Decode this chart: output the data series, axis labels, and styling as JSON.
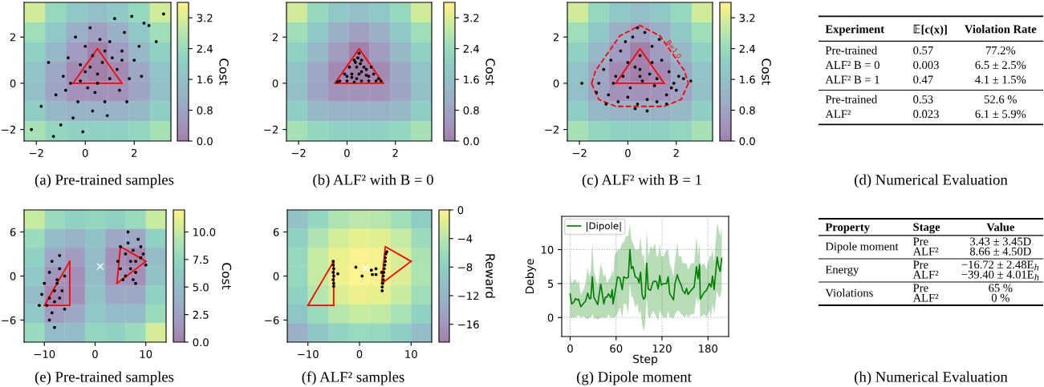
{
  "chart_data": [
    {
      "type": "heatmap",
      "title": "(a) Pre-trained samples",
      "xlim": [
        -2.5,
        3.5
      ],
      "ylim": [
        -2.5,
        3.5
      ],
      "xticks": [
        -2,
        0,
        2
      ],
      "yticks": [
        -2,
        0,
        2
      ],
      "clabel": "Cost",
      "clim": [
        0,
        3.6
      ],
      "cticks": [
        {
          "value": 0,
          "label": "0.0"
        },
        0.8,
        1.6,
        2.4,
        3.2
      ],
      "cells": [
        [
          3.1,
          2.3,
          1.8,
          1.6,
          1.8,
          2.3,
          3.1
        ],
        [
          2.5,
          1.8,
          1.1,
          0.7,
          1.1,
          1.8,
          2.5
        ],
        [
          2.1,
          1.4,
          0.6,
          0,
          0.6,
          1.4,
          2.1
        ],
        [
          1.7,
          0.9,
          0.2,
          0,
          0.2,
          0.9,
          1.7
        ],
        [
          1.6,
          0.8,
          0.4,
          0.4,
          0.4,
          0.8,
          1.6
        ],
        [
          2.0,
          1.4,
          1.2,
          1.2,
          1.2,
          1.4,
          2.0
        ],
        [
          2.6,
          2.2,
          2.1,
          2.1,
          2.1,
          2.2,
          2.6
        ]
      ],
      "series": [
        {
          "type": "scatter",
          "color": "#000000",
          "marker": "circle",
          "x": [
            -1.8,
            -1.2,
            -0.9,
            -0.5,
            -0.2,
            0.1,
            0.3,
            0.5,
            0.8,
            1.0,
            1.3,
            1.6,
            2.0,
            2.4,
            2.9,
            3.2,
            -2.2,
            -1.5,
            -1.0,
            -0.6,
            -0.3,
            0.0,
            0.2,
            0.4,
            0.7,
            0.9,
            1.2,
            1.5,
            1.8,
            2.2,
            2.6,
            -1.3,
            -0.8,
            -0.4,
            0.0,
            0.3,
            0.6,
            1.0,
            1.4,
            1.9,
            -0.7,
            -0.1,
            0.5,
            1.1,
            1.7,
            2.3,
            0.2,
            0.8,
            -0.2,
            1.5
          ],
          "values": [
            -1.0,
            -0.5,
            0.3,
            -1.5,
            0.8,
            -0.2,
            1.2,
            0.4,
            -0.8,
            1.8,
            0.6,
            2.2,
            1.0,
            2.6,
            1.8,
            3.0,
            -2.0,
            0.9,
            -1.8,
            0.0,
            -0.8,
            1.6,
            2.4,
            -0.4,
            0.9,
            -1.4,
            2.8,
            1.4,
            0.2,
            1.6,
            2.5,
            -2.3,
            -0.3,
            2.0,
            0.5,
            -1.2,
            1.9,
            0.2,
            -0.3,
            2.9,
            1.1,
            -2.1,
            0.0,
            1.1,
            -0.8,
            0.3,
            0.7,
            1.4,
            0.1,
            1.0
          ]
        },
        {
          "type": "line",
          "color": "#ff0000",
          "x": [
            -0.5,
            0.5,
            1.5
          ],
          "values": [
            0,
            1.5,
            0
          ]
        },
        {
          "type": "line",
          "color": "#ff0000",
          "x": [
            -0.5,
            1.5
          ],
          "values": [
            0,
            0
          ]
        }
      ]
    },
    {
      "type": "heatmap",
      "title": "(b) ALF² with B = 0",
      "xlim": [
        -2.5,
        3.5
      ],
      "ylim": [
        -2.5,
        3.5
      ],
      "xticks": [
        -2,
        0,
        2
      ],
      "yticks": [
        -2,
        0,
        2
      ],
      "clabel": "Cost",
      "clim": [
        0,
        3.6
      ],
      "cticks": [
        {
          "value": 0,
          "label": "0.0"
        },
        0.8,
        1.6,
        2.4,
        3.2
      ],
      "cells": [
        [
          3.1,
          2.3,
          1.8,
          1.6,
          1.8,
          2.3,
          3.1
        ],
        [
          2.5,
          1.8,
          1.1,
          0.7,
          1.1,
          1.8,
          2.5
        ],
        [
          2.1,
          1.4,
          0.6,
          0,
          0.6,
          1.4,
          2.1
        ],
        [
          1.7,
          0.9,
          0.2,
          0,
          0.2,
          0.9,
          1.7
        ],
        [
          1.6,
          0.8,
          0.4,
          0.4,
          0.4,
          0.8,
          1.6
        ],
        [
          2.0,
          1.4,
          1.2,
          1.2,
          1.2,
          1.4,
          2.0
        ],
        [
          2.6,
          2.2,
          2.1,
          2.1,
          2.1,
          2.2,
          2.6
        ]
      ],
      "series": [
        {
          "type": "scatter",
          "color": "#000000",
          "marker": "circle",
          "x": [
            -0.3,
            0.0,
            0.3,
            0.6,
            0.9,
            1.2,
            1.4,
            -0.1,
            0.2,
            0.5,
            0.8,
            1.1,
            0.1,
            0.4,
            0.7,
            1.0,
            0.3,
            0.6,
            0.5,
            0.4,
            0.2,
            0.8,
            -0.4,
            1.3,
            0.6,
            0.0,
            0.9,
            0.45,
            0.55,
            0.35
          ],
          "values": [
            0.1,
            0.1,
            0.05,
            0.1,
            0.1,
            0.1,
            0.1,
            0.4,
            0.4,
            0.4,
            0.35,
            0.4,
            0.7,
            0.7,
            0.7,
            0.7,
            1.0,
            1.0,
            1.3,
            0.2,
            0.25,
            0.6,
            0.05,
            0.2,
            0.5,
            0.3,
            0.3,
            1.1,
            0.85,
            0.9
          ]
        },
        {
          "type": "line",
          "color": "#ff0000",
          "x": [
            -0.5,
            0.5,
            1.5
          ],
          "values": [
            0,
            1.5,
            0
          ]
        },
        {
          "type": "line",
          "color": "#ff0000",
          "x": [
            -0.5,
            1.5
          ],
          "values": [
            0,
            0
          ]
        }
      ]
    },
    {
      "type": "heatmap",
      "title": "(c) ALF² with B = 1",
      "xlim": [
        -2.5,
        3.5
      ],
      "ylim": [
        -2.5,
        3.5
      ],
      "xticks": [
        -2,
        0,
        2
      ],
      "yticks": [
        -2,
        0,
        2
      ],
      "clabel": "Cost",
      "clim": [
        0,
        3.6
      ],
      "cticks": [
        {
          "value": 0,
          "label": "0.0"
        },
        0.8,
        1.6,
        2.4,
        3.2
      ],
      "cells": [
        [
          3.1,
          2.3,
          1.8,
          1.6,
          1.8,
          2.3,
          3.1
        ],
        [
          2.5,
          1.8,
          1.1,
          0.7,
          1.1,
          1.8,
          2.5
        ],
        [
          2.1,
          1.4,
          0.6,
          0,
          0.6,
          1.4,
          2.1
        ],
        [
          1.7,
          0.9,
          0.2,
          0,
          0.2,
          0.9,
          1.7
        ],
        [
          1.6,
          0.8,
          0.4,
          0.4,
          0.4,
          0.8,
          1.6
        ],
        [
          2.0,
          1.4,
          1.2,
          1.2,
          1.2,
          1.4,
          2.0
        ],
        [
          2.6,
          2.2,
          2.1,
          2.1,
          2.1,
          2.2,
          2.6
        ]
      ],
      "annotations": [
        "B=1.0"
      ],
      "series": [
        {
          "type": "scatter",
          "color": "#000000",
          "marker": "circle",
          "x": [
            -1.2,
            -0.8,
            -0.4,
            0.0,
            0.4,
            0.8,
            1.2,
            1.6,
            2.0,
            2.3,
            -1.0,
            -0.5,
            0.1,
            0.6,
            1.1,
            1.7,
            2.1,
            -1.3,
            -0.7,
            0.3,
            0.9,
            1.4,
            1.9,
            -0.3,
            0.5,
            1.0,
            0.2,
            0.7,
            -0.1,
            1.3,
            0.5,
            0.0,
            1.0,
            -0.6,
            1.6,
            0.4,
            -1.9,
            2.6,
            0.3,
            0.8,
            -0.2,
            1.2,
            -0.9,
            1.8,
            0.5
          ],
          "values": [
            0.0,
            -0.5,
            -0.8,
            -0.6,
            -0.9,
            -0.7,
            -0.8,
            -0.5,
            -0.3,
            0.2,
            0.6,
            0.3,
            -0.2,
            0.1,
            -0.1,
            0.5,
            0.3,
            -0.4,
            1.0,
            0.7,
            0.4,
            1.0,
            0.0,
            1.4,
            1.2,
            1.6,
            2.0,
            2.2,
            1.8,
            1.9,
            0.6,
            0.9,
            0.9,
            0.0,
            -0.9,
            2.4,
            0.0,
            0.1,
            -1.1,
            -1.2,
            0.3,
            0.2,
            -0.9,
            -0.2,
            0.3
          ]
        },
        {
          "type": "line",
          "color": "#ff0000",
          "x": [
            -0.5,
            0.5,
            1.5
          ],
          "values": [
            0,
            1.5,
            0
          ]
        },
        {
          "type": "line",
          "color": "#ff0000",
          "x": [
            -0.5,
            1.5
          ],
          "values": [
            0,
            0
          ]
        },
        {
          "type": "line",
          "color": "#ff0000",
          "line_style": "dashed",
          "x": [
            -1.5,
            -1.33,
            -0.33,
            0.5,
            1.33,
            2.33,
            2.5
          ],
          "values": [
            0.0,
            0.55,
            2.05,
            2.5,
            2.05,
            0.55,
            0.0
          ]
        },
        {
          "type": "line",
          "color": "#ff0000",
          "line_style": "dashed",
          "x": [
            -1.5,
            -1.2,
            -0.5,
            1.5,
            2.2,
            2.5
          ],
          "values": [
            0.0,
            -0.7,
            -1.0,
            -1.0,
            -0.7,
            0.0
          ]
        }
      ]
    },
    {
      "type": "other",
      "title": "(d) Numerical Evaluation",
      "categories": [
        "Experiment",
        "𝔼[c(x)]",
        "Violation Rate"
      ],
      "cell_labels": [
        [
          [
            "Pre-trained",
            "0.57",
            "77.2%"
          ],
          [
            "ALF² B = 0",
            "0.003",
            "6.5 ± 2.5%"
          ],
          [
            "ALF² B = 1",
            "0.47",
            "4.1 ± 1.5%"
          ]
        ],
        [
          [
            "Pre-trained",
            "0.53",
            "52.6 %"
          ],
          [
            "ALF²",
            "0.023",
            "6.1 ± 5.9%"
          ]
        ]
      ]
    },
    {
      "type": "heatmap",
      "title": "(e) Pre-trained samples",
      "xlim": [
        -14,
        14
      ],
      "ylim": [
        -9,
        9
      ],
      "xticks": [
        -10,
        0,
        10
      ],
      "yticks": [
        -6,
        0,
        6
      ],
      "clabel": "Cost",
      "clim": [
        0,
        12
      ],
      "cticks": [
        {
          "value": 0,
          "label": "0.0"
        },
        2.5,
        {
          "value": 5,
          "label": "5.0"
        },
        7.5,
        {
          "value": 10,
          "label": "10.0"
        }
      ],
      "cells": [
        [
          10,
          8,
          7,
          7.5,
          7,
          8,
          10
        ],
        [
          8,
          5,
          4,
          5.5,
          3,
          3,
          7
        ],
        [
          7,
          3,
          2,
          5,
          1,
          0.5,
          5
        ],
        [
          6,
          1.5,
          1,
          5,
          1.5,
          1,
          5.5
        ],
        [
          5,
          0.5,
          1,
          5.5,
          3,
          3,
          7
        ],
        [
          6,
          2,
          3,
          6,
          5,
          5,
          8
        ],
        [
          8,
          5,
          5,
          7.5,
          7,
          8,
          10.5
        ]
      ],
      "series": [
        {
          "type": "scatter",
          "color": "#000000",
          "marker": "circle",
          "x": [
            -10,
            -9,
            -8,
            -7,
            -6,
            -9.5,
            -8.5,
            -7.5,
            -6.5,
            -10.5,
            -9,
            -8,
            -7,
            -6,
            -8.5,
            -7.5,
            -9,
            -8,
            -11,
            -7,
            5,
            6,
            7,
            8,
            9,
            10,
            5.5,
            6.5,
            7.5,
            8.5,
            9.5,
            4.5,
            6,
            7,
            8,
            9,
            6.5,
            7.5,
            5,
            8
          ],
          "values": [
            -1,
            0.5,
            -2,
            -3,
            0,
            -4,
            -5,
            -1,
            -2,
            -2.5,
            -6,
            -3.5,
            1,
            -4.5,
            2,
            -0.5,
            -3,
            -7,
            -4,
            2.8,
            1,
            3,
            2,
            0.5,
            2.5,
            1.5,
            -0.5,
            4.5,
            3.5,
            5,
            3,
            2,
            0,
            1,
            -1,
            4,
            6,
            -0.5,
            4,
            2
          ]
        },
        {
          "type": "line",
          "color": "#ff0000",
          "x": [
            -10,
            -5
          ],
          "values": [
            -4,
            2
          ]
        },
        {
          "type": "line",
          "color": "#ff0000",
          "x": [
            -10,
            -5
          ],
          "values": [
            -4,
            -4
          ]
        },
        {
          "type": "line",
          "color": "#ff0000",
          "x": [
            -5,
            -5
          ],
          "values": [
            -4,
            2
          ]
        },
        {
          "type": "line",
          "color": "#ff0000",
          "x": [
            4.3,
            5,
            10
          ],
          "values": [
            -1,
            4,
            2
          ]
        },
        {
          "type": "line",
          "color": "#ff0000",
          "x": [
            4.3,
            10
          ],
          "values": [
            -1,
            2
          ]
        },
        {
          "type": "scatter",
          "color": "#ffffff",
          "marker": "cross",
          "x": [
            1
          ],
          "values": [
            1.3
          ]
        }
      ]
    },
    {
      "type": "heatmap",
      "title": "(f) ALF² samples",
      "xlim": [
        -14,
        14
      ],
      "ylim": [
        -9,
        9
      ],
      "xticks": [
        -10,
        0,
        10
      ],
      "yticks": [
        -6,
        0,
        6
      ],
      "clabel": "Reward",
      "clim": [
        -18.5,
        0
      ],
      "cticks": [
        0,
        -4,
        -8,
        -12,
        -16
      ],
      "cells": [
        [
          -10.2,
          -6.8,
          -4.7,
          -3.8,
          -4.1,
          -5.6,
          -8.4
        ],
        [
          -7.9,
          -4.5,
          -2.4,
          -1.4,
          -1.8,
          -3.3,
          -6.1
        ],
        [
          -6.7,
          -3.3,
          -1.2,
          -0.3,
          -0.6,
          -2.1,
          -4.9
        ],
        [
          -6.6,
          -3.2,
          -1.0,
          -0.1,
          -0.4,
          -2.0,
          -4.7
        ],
        [
          -7.6,
          -4.2,
          -2.0,
          -1.1,
          -1.4,
          -3.0,
          -5.7
        ],
        [
          -9.6,
          -6.2,
          -4.1,
          -3.1,
          -3.5,
          -5.0,
          -7.8
        ],
        [
          -12.8,
          -9.4,
          -7.3,
          -6.4,
          -6.7,
          -8.2,
          -11.0
        ]
      ],
      "series": [
        {
          "type": "scatter",
          "color": "#000000",
          "marker": "circle",
          "x": [
            -5.1,
            -5.1,
            -5.0,
            -5.1,
            -5.0,
            -5.1,
            -5.0,
            -5.0,
            -4.2,
            4.4,
            4.5,
            4.6,
            4.6,
            4.7,
            4.8,
            4.9,
            5.0,
            5.0,
            5.1,
            4.4,
            4.3,
            3.2,
            2.3,
            3.2,
            2.5,
            0.5,
            -0.7,
            5.3
          ],
          "values": [
            2,
            1.5,
            1.0,
            0.5,
            0,
            -0.5,
            -1.0,
            -1.4,
            0.3,
            -1.5,
            -1,
            -0.5,
            0,
            0.5,
            1,
            1.5,
            2,
            2.5,
            3,
            -2,
            0.5,
            1,
            0.8,
            0.2,
            0.2,
            0,
            1.2,
            3.3
          ]
        },
        {
          "type": "line",
          "color": "#ff0000",
          "x": [
            -10,
            -5
          ],
          "values": [
            -4,
            2
          ]
        },
        {
          "type": "line",
          "color": "#ff0000",
          "x": [
            -10,
            -5
          ],
          "values": [
            -4,
            -4
          ]
        },
        {
          "type": "line",
          "color": "#ff0000",
          "x": [
            -5,
            -5
          ],
          "values": [
            -4,
            2
          ]
        },
        {
          "type": "line",
          "color": "#ff0000",
          "x": [
            4.3,
            5,
            10
          ],
          "values": [
            -1,
            4,
            2
          ]
        },
        {
          "type": "line",
          "color": "#ff0000",
          "x": [
            4.3,
            10
          ],
          "values": [
            -1,
            2
          ]
        },
        {
          "type": "scatter",
          "color": "#ffffff",
          "marker": "cross",
          "x": [
            1.2
          ],
          "values": [
            1.1
          ]
        }
      ]
    },
    {
      "type": "line",
      "title": "(g) Dipole moment",
      "xlabel": "Step",
      "ylabel": "Debye",
      "xlim": [
        -11,
        207
      ],
      "ylim": [
        -2.8,
        14.9
      ],
      "xticks": [
        0,
        60,
        120,
        180
      ],
      "yticks": [
        0,
        5,
        10
      ],
      "grid": true,
      "legend": "top left",
      "series": [
        {
          "name": "|Dipole|",
          "color": "#008000",
          "x": [
            0,
            2,
            5,
            7,
            9,
            11,
            14,
            17,
            20,
            23,
            25,
            27,
            29,
            31,
            36,
            40,
            44,
            46,
            48,
            50,
            53,
            55,
            56,
            58,
            62,
            65,
            68,
            70,
            73,
            76,
            78,
            80,
            82,
            85,
            88,
            90,
            92,
            94,
            96,
            98,
            100,
            102,
            105,
            108,
            111,
            113,
            115,
            117,
            119,
            122,
            126,
            128,
            130,
            133,
            135,
            137,
            140,
            142,
            145,
            147,
            150,
            152,
            154,
            158,
            162,
            165,
            167,
            169,
            170,
            175,
            178,
            182,
            184,
            186,
            188,
            192,
            194,
            196,
            198
          ],
          "values": [
            3.5,
            2.0,
            2.3,
            2.8,
            2.6,
            2.7,
            1.6,
            2.0,
            2.4,
            3.6,
            2.8,
            2.8,
            6.0,
            3.0,
            1.9,
            4.9,
            2.0,
            3.0,
            3.0,
            3.5,
            2.9,
            4.1,
            2.0,
            3.3,
            6.0,
            5.8,
            4.1,
            6.0,
            5.8,
            5.9,
            10.0,
            7.2,
            7.5,
            6.0,
            5.8,
            5.1,
            6.7,
            3.4,
            2.7,
            3.0,
            8.0,
            4.2,
            4.0,
            5.2,
            5.4,
            5.2,
            4.2,
            6.2,
            4.8,
            5.0,
            5.0,
            6.0,
            3.5,
            3.0,
            2.6,
            5.0,
            6.3,
            5.5,
            4.8,
            4.0,
            3.5,
            4.3,
            3.4,
            4.0,
            4.5,
            7.5,
            5.7,
            7.8,
            2.7,
            3.7,
            4.0,
            5.0,
            4.5,
            6.1,
            4.1,
            8.9,
            7.5,
            6.8,
            8.7
          ],
          "lower": [
            0,
            0,
            0,
            0,
            0.2,
            0.3,
            0,
            0.2,
            0,
            -0.3,
            0,
            0,
            0.5,
            0,
            -0.3,
            0,
            0,
            0,
            0,
            0.5,
            0,
            0,
            0,
            0,
            0.6,
            1.5,
            0,
            2,
            2,
            0.5,
            5,
            3,
            3,
            1.5,
            2,
            0.5,
            1,
            -1,
            -2,
            -1,
            3,
            0,
            0,
            1,
            0.5,
            0,
            -0.5,
            1,
            0.5,
            0,
            0,
            1,
            0,
            0,
            -0.2,
            0.5,
            1,
            1,
            0.5,
            0.3,
            0,
            0.5,
            0,
            0.5,
            0.5,
            3,
            2,
            3,
            0,
            0.5,
            0,
            1,
            0,
            2,
            0.5,
            4,
            3,
            3,
            4
          ],
          "upper": [
            7,
            5,
            5.5,
            5.7,
            5,
            5.4,
            3.3,
            4,
            5,
            7.5,
            6,
            7,
            11,
            7,
            4.5,
            8,
            6,
            6.5,
            5,
            5.5,
            6,
            7,
            6,
            9,
            10,
            10,
            11,
            11,
            12,
            12,
            14,
            11.5,
            11,
            10,
            10,
            10,
            12,
            9,
            9.5,
            7,
            13,
            9,
            10.5,
            10,
            11,
            9,
            9,
            11,
            9,
            9,
            10,
            10,
            8,
            7,
            6,
            8.5,
            11,
            9,
            9,
            8,
            8,
            8,
            7,
            8,
            8,
            12,
            9,
            11,
            7.5,
            8,
            7,
            9,
            9,
            10,
            8,
            14,
            13,
            12,
            13.3
          ]
        }
      ]
    },
    {
      "type": "other",
      "title": "(h) Numerical Evaluation",
      "categories": [
        "Property",
        "Stage",
        "Value"
      ],
      "cell_labels": [
        [
          [
            "Dipole moment",
            "Pre",
            "3.43 ± 3.45D"
          ],
          [
            null,
            "ALF²",
            "8.66 ± 4.50D"
          ]
        ],
        [
          [
            "Energy",
            "Pre",
            "−16.72 ± 2.48E$_{h}$"
          ],
          [
            null,
            "ALF²",
            "−39.40 ± 4.01E$_{h}$"
          ]
        ],
        [
          [
            "Violations",
            "Pre",
            "65 %"
          ],
          [
            null,
            "ALF²",
            "0 %"
          ]
        ]
      ]
    }
  ]
}
